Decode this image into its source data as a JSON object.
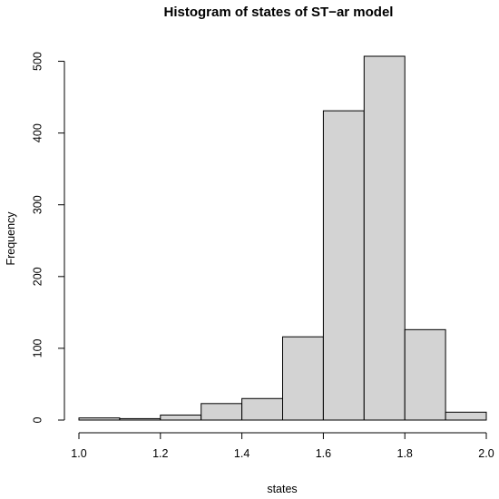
{
  "chart_data": {
    "type": "bar",
    "title": "Histogram of states of ST−ar model",
    "xlabel": "states",
    "ylabel": "Frequency",
    "bins": [
      {
        "from": 1.0,
        "to": 1.1,
        "count": 3
      },
      {
        "from": 1.1,
        "to": 1.2,
        "count": 2
      },
      {
        "from": 1.2,
        "to": 1.3,
        "count": 7
      },
      {
        "from": 1.3,
        "to": 1.4,
        "count": 23
      },
      {
        "from": 1.4,
        "to": 1.5,
        "count": 30
      },
      {
        "from": 1.5,
        "to": 1.6,
        "count": 116
      },
      {
        "from": 1.6,
        "to": 1.7,
        "count": 431
      },
      {
        "from": 1.7,
        "to": 1.8,
        "count": 507
      },
      {
        "from": 1.8,
        "to": 1.9,
        "count": 126
      },
      {
        "from": 1.9,
        "to": 2.0,
        "count": 11
      }
    ],
    "xlim": [
      1.0,
      2.0
    ],
    "ylim": [
      0,
      507
    ],
    "xticks": [
      "1.0",
      "1.2",
      "1.4",
      "1.6",
      "1.8",
      "2.0"
    ],
    "xtick_values": [
      1.0,
      1.2,
      1.4,
      1.6,
      1.8,
      2.0
    ],
    "yticks": [
      "0",
      "100",
      "200",
      "300",
      "400",
      "500"
    ],
    "ytick_values": [
      0,
      100,
      200,
      300,
      400,
      500
    ],
    "bar_color": "#d3d3d3",
    "grid": false
  }
}
